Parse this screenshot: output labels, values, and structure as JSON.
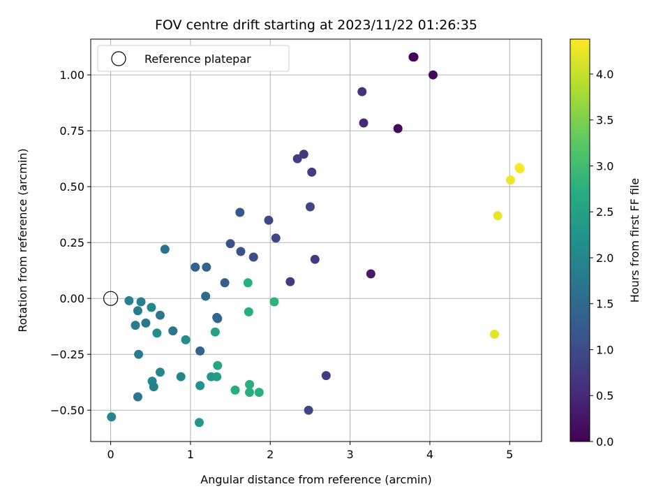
{
  "chart_data": {
    "type": "scatter",
    "title": "FOV centre drift starting at 2023/11/22 01:26:35",
    "xlabel": "Angular distance from reference (arcmin)",
    "ylabel": "Rotation from reference (arcmin)",
    "xlim": [
      -0.25,
      5.4
    ],
    "ylim": [
      -0.64,
      1.16
    ],
    "xticks": [
      0,
      1,
      2,
      3,
      4,
      5
    ],
    "xtick_labels": [
      "0",
      "1",
      "2",
      "3",
      "4",
      "5"
    ],
    "yticks": [
      -0.5,
      -0.25,
      0.0,
      0.25,
      0.5,
      0.75,
      1.0
    ],
    "ytick_labels": [
      "−0.50",
      "−0.25",
      "0.00",
      "0.25",
      "0.50",
      "0.75",
      "1.00"
    ],
    "grid": true,
    "colormap": "viridis",
    "legend": {
      "position": "top-left",
      "entries": [
        {
          "label": "Reference platepar",
          "marker": "open-circle"
        }
      ]
    },
    "reference_point": {
      "x": 0.0,
      "y": 0.0
    },
    "colorbar": {
      "label": "Hours from first FF file",
      "range": [
        0.0,
        4.38
      ],
      "ticks": [
        0.0,
        0.5,
        1.0,
        1.5,
        2.0,
        2.5,
        3.0,
        3.5,
        4.0
      ],
      "tick_labels": [
        "0.0",
        "0.5",
        "1.0",
        "1.5",
        "2.0",
        "2.5",
        "3.0",
        "3.5",
        "4.0"
      ]
    },
    "points": [
      {
        "x": 3.8,
        "y": 1.08,
        "hours": 0.05
      },
      {
        "x": 4.04,
        "y": 1.0,
        "hours": 0.1
      },
      {
        "x": 3.79,
        "y": 1.08,
        "hours": 0.05
      },
      {
        "x": 3.6,
        "y": 0.76,
        "hours": 0.1
      },
      {
        "x": 3.15,
        "y": 0.925,
        "hours": 0.6
      },
      {
        "x": 3.17,
        "y": 0.785,
        "hours": 0.5
      },
      {
        "x": 3.26,
        "y": 0.11,
        "hours": 0.3
      },
      {
        "x": 2.34,
        "y": 0.625,
        "hours": 0.8
      },
      {
        "x": 2.42,
        "y": 0.645,
        "hours": 0.7
      },
      {
        "x": 2.52,
        "y": 0.565,
        "hours": 0.8
      },
      {
        "x": 2.5,
        "y": 0.41,
        "hours": 0.9
      },
      {
        "x": 2.56,
        "y": 0.175,
        "hours": 0.75
      },
      {
        "x": 2.25,
        "y": 0.075,
        "hours": 0.75
      },
      {
        "x": 2.07,
        "y": 0.27,
        "hours": 0.95
      },
      {
        "x": 1.98,
        "y": 0.35,
        "hours": 0.95
      },
      {
        "x": 2.7,
        "y": -0.345,
        "hours": 0.75
      },
      {
        "x": 2.48,
        "y": -0.5,
        "hours": 0.9
      },
      {
        "x": 1.62,
        "y": 0.385,
        "hours": 1.2
      },
      {
        "x": 1.5,
        "y": 0.245,
        "hours": 1.1
      },
      {
        "x": 1.63,
        "y": 0.21,
        "hours": 1.1
      },
      {
        "x": 1.79,
        "y": 0.185,
        "hours": 1.05
      },
      {
        "x": 1.43,
        "y": 0.07,
        "hours": 1.3
      },
      {
        "x": 1.2,
        "y": 0.14,
        "hours": 1.4
      },
      {
        "x": 1.06,
        "y": 0.14,
        "hours": 1.4
      },
      {
        "x": 1.19,
        "y": 0.01,
        "hours": 1.5
      },
      {
        "x": 1.34,
        "y": -0.09,
        "hours": 1.45
      },
      {
        "x": 1.33,
        "y": -0.085,
        "hours": 1.45
      },
      {
        "x": 1.12,
        "y": -0.235,
        "hours": 1.4
      },
      {
        "x": 0.68,
        "y": 0.22,
        "hours": 1.65
      },
      {
        "x": 0.62,
        "y": -0.075,
        "hours": 1.7
      },
      {
        "x": 0.78,
        "y": -0.145,
        "hours": 1.7
      },
      {
        "x": 0.23,
        "y": -0.01,
        "hours": 1.9
      },
      {
        "x": 0.38,
        "y": -0.015,
        "hours": 1.9
      },
      {
        "x": 0.34,
        "y": -0.055,
        "hours": 1.8
      },
      {
        "x": 0.31,
        "y": -0.12,
        "hours": 1.8
      },
      {
        "x": 0.44,
        "y": -0.11,
        "hours": 1.75
      },
      {
        "x": 0.51,
        "y": -0.04,
        "hours": 2.0
      },
      {
        "x": 0.58,
        "y": -0.155,
        "hours": 2.1
      },
      {
        "x": 0.94,
        "y": -0.185,
        "hours": 2.1
      },
      {
        "x": 0.35,
        "y": -0.25,
        "hours": 1.8
      },
      {
        "x": 0.62,
        "y": -0.33,
        "hours": 2.0
      },
      {
        "x": 0.52,
        "y": -0.37,
        "hours": 2.0
      },
      {
        "x": 0.54,
        "y": -0.395,
        "hours": 1.9
      },
      {
        "x": 0.88,
        "y": -0.35,
        "hours": 2.0
      },
      {
        "x": 0.34,
        "y": -0.44,
        "hours": 1.7
      },
      {
        "x": 0.01,
        "y": -0.53,
        "hours": 2.0
      },
      {
        "x": 1.12,
        "y": -0.39,
        "hours": 2.2
      },
      {
        "x": 1.26,
        "y": -0.35,
        "hours": 2.3
      },
      {
        "x": 1.33,
        "y": -0.35,
        "hours": 2.4
      },
      {
        "x": 1.11,
        "y": -0.555,
        "hours": 2.3
      },
      {
        "x": 1.31,
        "y": -0.15,
        "hours": 2.5
      },
      {
        "x": 1.34,
        "y": -0.3,
        "hours": 2.6
      },
      {
        "x": 1.56,
        "y": -0.41,
        "hours": 2.7
      },
      {
        "x": 1.74,
        "y": -0.385,
        "hours": 2.75
      },
      {
        "x": 1.74,
        "y": -0.42,
        "hours": 2.75
      },
      {
        "x": 1.86,
        "y": -0.42,
        "hours": 2.75
      },
      {
        "x": 1.73,
        "y": -0.06,
        "hours": 2.7
      },
      {
        "x": 1.72,
        "y": 0.07,
        "hours": 2.75
      },
      {
        "x": 2.05,
        "y": -0.015,
        "hours": 2.8
      },
      {
        "x": 4.85,
        "y": 0.37,
        "hours": 4.25
      },
      {
        "x": 5.01,
        "y": 0.53,
        "hours": 4.3
      },
      {
        "x": 5.12,
        "y": 0.585,
        "hours": 4.35
      },
      {
        "x": 5.13,
        "y": 0.58,
        "hours": 4.35
      },
      {
        "x": 4.81,
        "y": -0.16,
        "hours": 4.2
      }
    ]
  }
}
